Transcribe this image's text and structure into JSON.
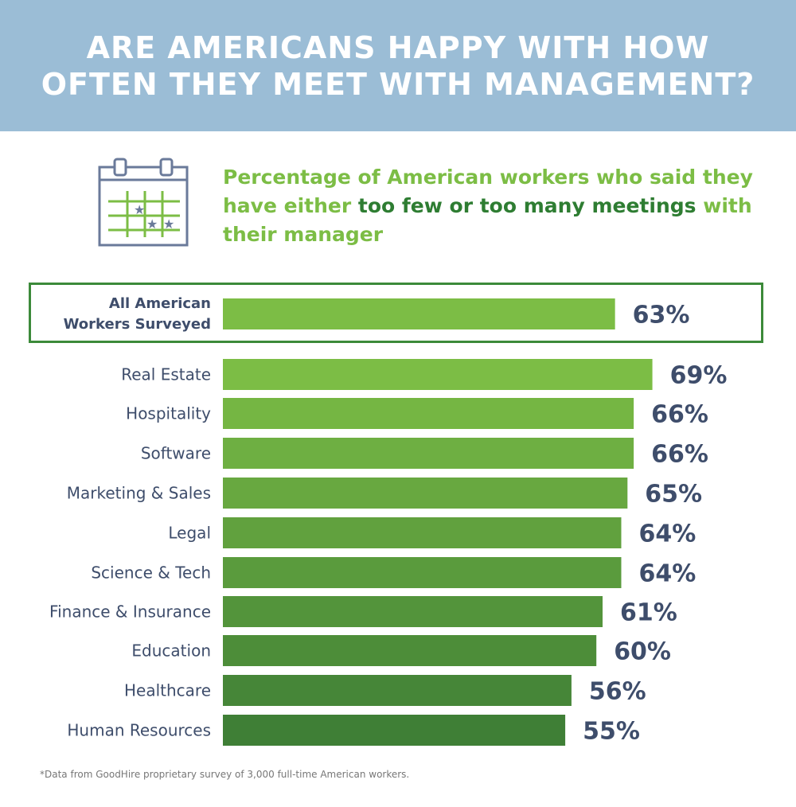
{
  "header": {
    "title": "ARE AMERICANS HAPPY WITH HOW OFTEN THEY MEET WITH MANAGEMENT?"
  },
  "subtitle": {
    "part1": "Percentage of American workers who said they have either ",
    "part2": "too few or too many meetings",
    "part3": " with their manager"
  },
  "icon": "calendar-icon",
  "colors": {
    "header_bg": "#9bbdd6",
    "light_green": "#7cbd45",
    "dark_green": "#3f7f36",
    "value_text": "#3e4d6b",
    "box_border": "#3c8a3a"
  },
  "chart_data": {
    "type": "bar",
    "orientation": "horizontal",
    "categories": [
      "All American Workers Surveyed",
      "Real Estate",
      "Hospitality",
      "Software",
      "Marketing & Sales",
      "Legal",
      "Science & Tech",
      "Finance & Insurance",
      "Education",
      "Healthcare",
      "Human Resources"
    ],
    "values": [
      63,
      69,
      66,
      66,
      65,
      64,
      64,
      61,
      60,
      56,
      55
    ],
    "value_labels": [
      "63%",
      "69%",
      "66%",
      "66%",
      "65%",
      "64%",
      "64%",
      "61%",
      "60%",
      "56%",
      "55%"
    ],
    "unit": "%",
    "highlighted": "All American Workers Surveyed"
  },
  "footnote": "*Data from GoodHire proprietary survey of 3,000 full-time American workers."
}
